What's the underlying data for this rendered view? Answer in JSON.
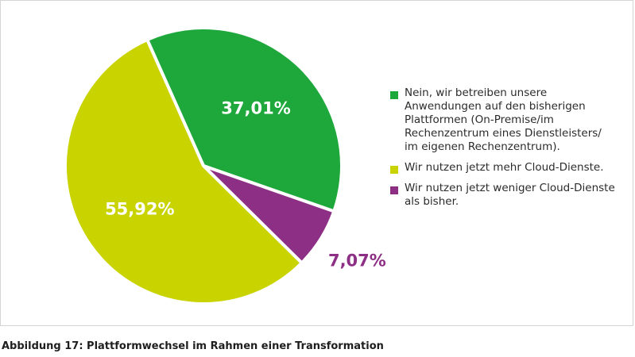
{
  "chart_data": {
    "type": "pie",
    "categories": [
      "Nein, wir betreiben unsere Anwendungen auf den bisherigen Plattformen (On-Premise/im Rechenzentrum eines Dienstleisters/ im eigenen Rechenzentrum).",
      "Wir nutzen jetzt mehr Cloud-Dienste.",
      "Wir nutzen jetzt weniger Cloud-Dienste als bisher."
    ],
    "values": [
      37.01,
      55.92,
      7.07
    ],
    "data_labels": [
      "37,01%",
      "55,92%",
      "7,07%"
    ],
    "colors": [
      "#1ea83c",
      "#c9d300",
      "#8e2f86"
    ],
    "legend": {
      "placement": "right",
      "items": [
        {
          "label_lines": [
            "Nein, wir betreiben unsere",
            "Anwendungen auf den bisherigen",
            "Plattformen (On-Premise/im",
            "Rechenzentrum eines Dienstleisters/",
            "im eigenen Rechenzentrum)."
          ],
          "color": "#1ea83c"
        },
        {
          "label_lines": [
            "Wir nutzen jetzt mehr Cloud-Dienste."
          ],
          "color": "#c9d300"
        },
        {
          "label_lines": [
            "Wir nutzen jetzt weniger Cloud-Dienste",
            "als bisher."
          ],
          "color": "#8e2f86"
        }
      ]
    }
  },
  "caption": "Abbildung 17: Plattformwechsel im Rahmen einer Transformation"
}
